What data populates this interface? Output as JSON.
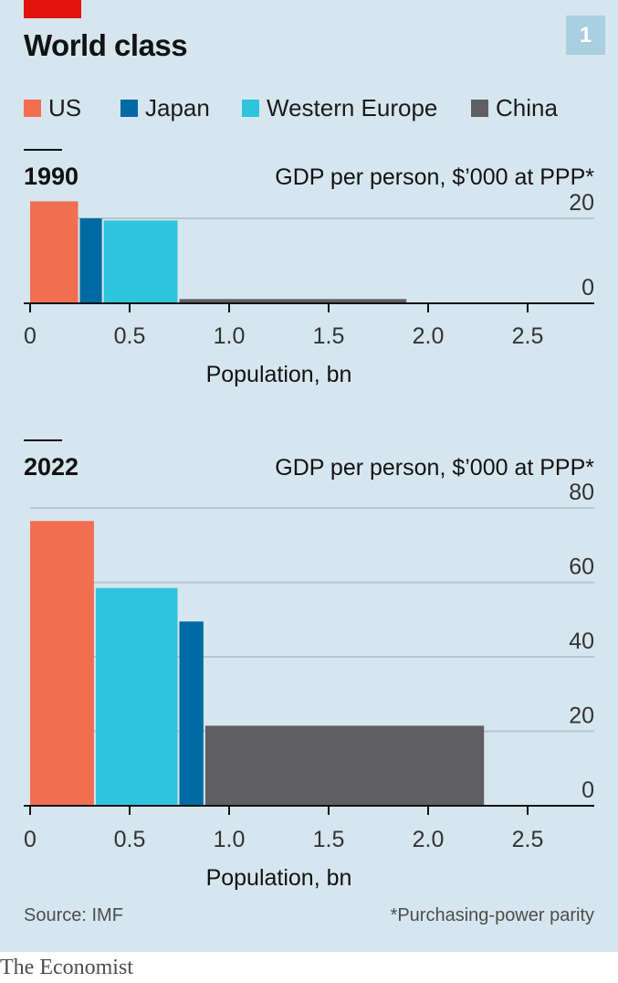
{
  "header": {
    "title": "World class",
    "chart_number": "1"
  },
  "legend": [
    {
      "label": "US",
      "color": "#f26e50"
    },
    {
      "label": "Japan",
      "color": "#006ba2"
    },
    {
      "label": "Western Europe",
      "color": "#2ec4dc"
    },
    {
      "label": "China",
      "color": "#5f5f62"
    }
  ],
  "footer": {
    "source": "Source: IMF",
    "footnote": "*Purchasing-power parity",
    "brand": "The Economist"
  },
  "chart_data": [
    {
      "type": "bar",
      "title": "1990",
      "ylabel": "GDP per person, $’000 at PPP*",
      "xlabel": "Population, bn",
      "xlim": [
        0,
        2.8
      ],
      "ylim": [
        0,
        20
      ],
      "xticks": [
        0,
        0.5,
        1.0,
        1.5,
        2.0,
        2.5
      ],
      "xtick_labels": [
        "0",
        "0.5",
        "1.0",
        "1.5",
        "2.0",
        "2.5"
      ],
      "yticks": [
        0,
        20
      ],
      "ytick_labels": [
        "0",
        "20"
      ],
      "grid": true,
      "series": [
        {
          "name": "US",
          "population_bn": 0.25,
          "gdp_per_person_k": 24,
          "color": "#f26e50"
        },
        {
          "name": "Japan",
          "population_bn": 0.12,
          "gdp_per_person_k": 20,
          "color": "#006ba2"
        },
        {
          "name": "Western Europe",
          "population_bn": 0.38,
          "gdp_per_person_k": 19.5,
          "color": "#2ec4dc"
        },
        {
          "name": "China",
          "population_bn": 1.15,
          "gdp_per_person_k": 1,
          "color": "#5f5f62"
        }
      ]
    },
    {
      "type": "bar",
      "title": "2022",
      "ylabel": "GDP per person, $’000 at PPP*",
      "xlabel": "Population, bn",
      "xlim": [
        0,
        2.8
      ],
      "ylim": [
        0,
        80
      ],
      "xticks": [
        0,
        0.5,
        1.0,
        1.5,
        2.0,
        2.5
      ],
      "xtick_labels": [
        "0",
        "0.5",
        "1.0",
        "1.5",
        "2.0",
        "2.5"
      ],
      "yticks": [
        0,
        20,
        40,
        60,
        80
      ],
      "ytick_labels": [
        "0",
        "20",
        "40",
        "60",
        "80"
      ],
      "grid": true,
      "series": [
        {
          "name": "US",
          "population_bn": 0.33,
          "gdp_per_person_k": 76.5,
          "color": "#f26e50"
        },
        {
          "name": "Western Europe",
          "population_bn": 0.42,
          "gdp_per_person_k": 58.5,
          "color": "#2ec4dc"
        },
        {
          "name": "Japan",
          "population_bn": 0.13,
          "gdp_per_person_k": 49.5,
          "color": "#006ba2"
        },
        {
          "name": "China",
          "population_bn": 1.41,
          "gdp_per_person_k": 21.5,
          "color": "#5f5f62"
        }
      ]
    }
  ]
}
